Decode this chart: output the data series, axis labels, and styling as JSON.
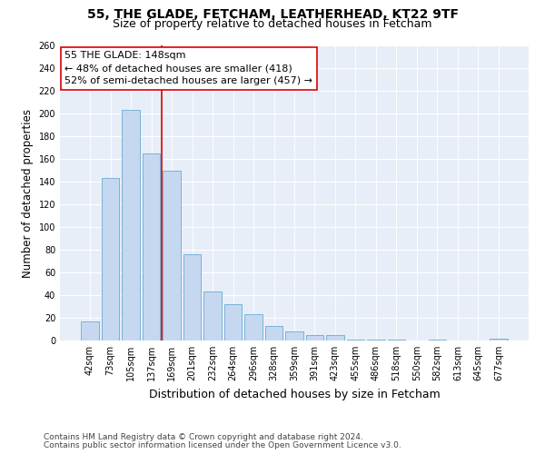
{
  "title1": "55, THE GLADE, FETCHAM, LEATHERHEAD, KT22 9TF",
  "title2": "Size of property relative to detached houses in Fetcham",
  "xlabel": "Distribution of detached houses by size in Fetcham",
  "ylabel": "Number of detached properties",
  "bar_color": "#c5d8f0",
  "bar_edge_color": "#6aaad4",
  "categories": [
    "42sqm",
    "73sqm",
    "105sqm",
    "137sqm",
    "169sqm",
    "201sqm",
    "232sqm",
    "264sqm",
    "296sqm",
    "328sqm",
    "359sqm",
    "391sqm",
    "423sqm",
    "455sqm",
    "486sqm",
    "518sqm",
    "550sqm",
    "582sqm",
    "613sqm",
    "645sqm",
    "677sqm"
  ],
  "values": [
    17,
    143,
    203,
    165,
    150,
    76,
    43,
    32,
    23,
    13,
    8,
    5,
    5,
    1,
    1,
    1,
    0,
    1,
    0,
    0,
    2
  ],
  "ylim": [
    0,
    260
  ],
  "yticks": [
    0,
    20,
    40,
    60,
    80,
    100,
    120,
    140,
    160,
    180,
    200,
    220,
    240,
    260
  ],
  "vline_index": 3,
  "vline_color": "#dd0000",
  "annotation_text": "55 THE GLADE: 148sqm\n← 48% of detached houses are smaller (418)\n52% of semi-detached houses are larger (457) →",
  "annotation_box_facecolor": "#ffffff",
  "annotation_box_edgecolor": "#dd0000",
  "footer1": "Contains HM Land Registry data © Crown copyright and database right 2024.",
  "footer2": "Contains public sector information licensed under the Open Government Licence v3.0.",
  "fig_facecolor": "#ffffff",
  "ax_facecolor": "#e8eef8",
  "grid_color": "#ffffff",
  "title1_fontsize": 10,
  "title2_fontsize": 9,
  "xlabel_fontsize": 9,
  "ylabel_fontsize": 8.5,
  "tick_fontsize": 7,
  "footer_fontsize": 6.5,
  "annotation_fontsize": 8
}
